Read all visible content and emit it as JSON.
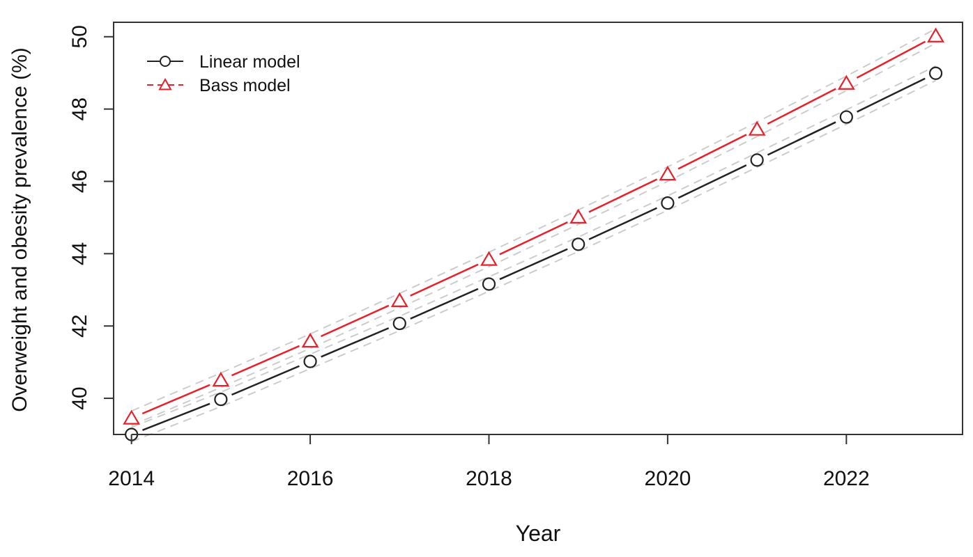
{
  "chart_data": {
    "type": "line",
    "xlabel": "Year",
    "ylabel": "Overweight and obesity prevalence (%)",
    "xlim": [
      2013.8,
      2023.3
    ],
    "ylim": [
      39.0,
      50.4
    ],
    "x_ticks": [
      2014,
      2016,
      2018,
      2020,
      2022
    ],
    "y_ticks": [
      40,
      42,
      44,
      46,
      48,
      50
    ],
    "x": [
      2014,
      2015,
      2016,
      2017,
      2018,
      2019,
      2020,
      2021,
      2022,
      2023
    ],
    "series": [
      {
        "name": "Linear model",
        "marker": "circle",
        "color": "#222222",
        "line_style": "solid",
        "values": [
          39.0,
          39.97,
          41.02,
          42.07,
          43.16,
          44.26,
          45.4,
          46.59,
          47.78,
          48.99
        ],
        "lower": [
          38.8,
          39.77,
          40.82,
          41.87,
          42.96,
          44.06,
          45.2,
          46.39,
          47.58,
          48.79
        ],
        "upper": [
          39.2,
          40.17,
          41.22,
          42.27,
          43.36,
          44.46,
          45.6,
          46.79,
          47.98,
          49.19
        ]
      },
      {
        "name": "Bass model",
        "marker": "triangle",
        "color": "#e8202a",
        "line_style": "solid",
        "legend_line_style": "dashed",
        "values": [
          39.45,
          40.5,
          41.58,
          42.7,
          43.84,
          45.01,
          46.2,
          47.44,
          48.71,
          50.02
        ],
        "lower": [
          39.25,
          40.3,
          41.38,
          42.5,
          43.64,
          44.81,
          46.0,
          47.24,
          48.51,
          49.82
        ],
        "upper": [
          39.65,
          40.7,
          41.78,
          42.9,
          44.04,
          45.21,
          46.4,
          47.64,
          48.91,
          50.22
        ]
      }
    ],
    "band_color": "#cccccc",
    "band_style": "dashed",
    "legend_position": "top-left",
    "grid": false
  }
}
